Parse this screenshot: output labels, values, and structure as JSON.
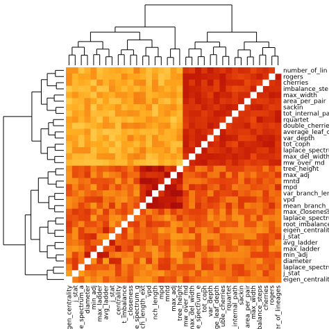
{
  "chart_data": {
    "type": "heatmap",
    "title": "",
    "xlabel": "",
    "ylabel": "",
    "row_labels": [
      "number_of_lin",
      "rogers",
      "cherries",
      "imbalance_ste",
      "max_width",
      "area_per_pair",
      "sackin",
      "tot_internal_pa",
      "rquartet",
      "double_cherries",
      "average_leaf_d",
      "var_depth",
      "tot_coph",
      "laplace_spectru",
      "max_del_width",
      "mw_over_md",
      "tree_height",
      "max_adj",
      "mntd",
      "mpd",
      "var_branch_len",
      "vpd",
      "mean_branch_",
      "max_closeness",
      "laplace_spectru",
      "root_imbalance",
      "eigen_centralit",
      "j_stat",
      "avg_ladder",
      "max_ladder",
      "min_adj",
      "diameter",
      "laplace_spectru",
      "j_stat",
      "eigen_centralit"
    ],
    "column_labels": [
      "eigen_centrality",
      "j_stat",
      "e_spectrum_a",
      "diameter",
      "min_adj",
      "max_ladder",
      "avg_ladder",
      "j_stat",
      "_centrality",
      "t_imbalance",
      "_closeness",
      "e_spectrum_g",
      "nch_length_ext",
      "vpd",
      "nch_length",
      "mpd",
      "mntd",
      "max_adj",
      "tree_height",
      "mw_over_md",
      "max_del_width",
      "e_spectrum_e",
      "tot_coph",
      "var_depth",
      "ge_leaf_depth",
      "uble_cherries",
      "rquartet",
      "_internal_path",
      "sackin",
      "area_per_pair",
      "max_width",
      "balance_steps",
      "cherries",
      "rogers",
      "er_of_lineages"
    ],
    "value_range": [
      0,
      1
    ],
    "color_scale": [
      "#fff3b0",
      "#ffd75a",
      "#ffab1f",
      "#f57a12",
      "#e8470b",
      "#c81e06",
      "#a70a0a"
    ],
    "diagonal_color": "#ffffff",
    "row_groups": [
      16,
      19
    ],
    "column_groups": [
      19,
      16
    ],
    "row_dendrogram": true,
    "column_dendrogram": true,
    "legend": "none"
  }
}
